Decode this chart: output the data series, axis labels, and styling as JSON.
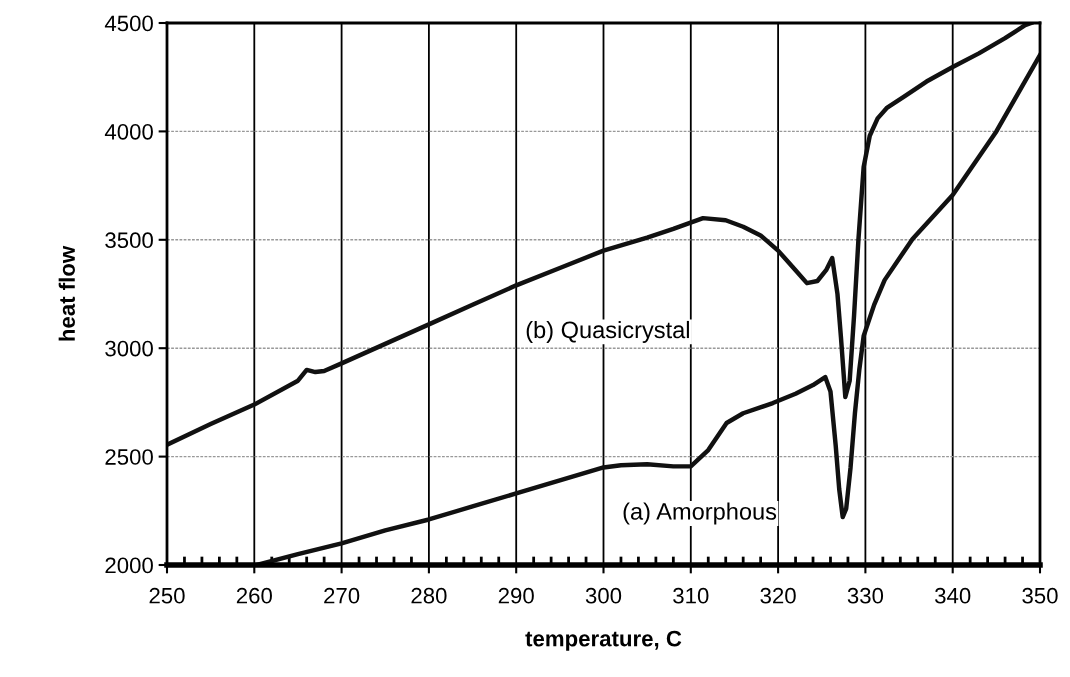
{
  "chart_data": {
    "type": "line",
    "xlabel": "temperature, C",
    "ylabel": "heat flow",
    "xlim": [
      250,
      350
    ],
    "xticks": [
      250,
      260,
      270,
      280,
      290,
      300,
      310,
      320,
      330,
      340,
      350
    ],
    "ylim": [
      2000,
      4500
    ],
    "yticks": [
      2000,
      2500,
      3000,
      3500,
      4000,
      4500
    ],
    "grid": true,
    "marker": "none",
    "line_style": "solid",
    "series": [
      {
        "name": "(b) Quasicrystal",
        "color": "#111111",
        "x": [
          250,
          255,
          260,
          265,
          266,
          267,
          268,
          270,
          275,
          280,
          285,
          290,
          295,
          300,
          305,
          308,
          311.4,
          314,
          316,
          318,
          320,
          322,
          323.3,
          324.5,
          325.5,
          326.2,
          326.8,
          327.2,
          327.7,
          328.2,
          328.7,
          329.2,
          329.8,
          330.5,
          331.4,
          332.5,
          334.3,
          337,
          340,
          343,
          346,
          348.3,
          349
        ],
        "values": [
          2555,
          2650,
          2740,
          2850,
          2900,
          2890,
          2895,
          2930,
          3020,
          3110,
          3200,
          3290,
          3370,
          3450,
          3510,
          3550,
          3600,
          3590,
          3560,
          3520,
          3450,
          3360,
          3300,
          3310,
          3360,
          3416,
          3250,
          3050,
          2775,
          2850,
          3150,
          3500,
          3836,
          3980,
          4060,
          4110,
          4157,
          4230,
          4297,
          4360,
          4430,
          4490,
          4500
        ]
      },
      {
        "name": "(a) Amorphous",
        "color": "#111111",
        "x": [
          260.3,
          265,
          270,
          275,
          280,
          285,
          290,
          295,
          300,
          302,
          305,
          308,
          310,
          312,
          314.1,
          316,
          319.4,
          322,
          324,
          325.4,
          326,
          326.6,
          327,
          327.4,
          327.8,
          328.3,
          328.8,
          329.3,
          329.8,
          331,
          332.2,
          335.4,
          340,
          345,
          350
        ],
        "values": [
          2000,
          2050,
          2100,
          2160,
          2210,
          2270,
          2330,
          2390,
          2450,
          2460,
          2465,
          2455,
          2455,
          2530,
          2655,
          2700,
          2747,
          2790,
          2830,
          2867,
          2800,
          2550,
          2350,
          2221,
          2260,
          2450,
          2700,
          2900,
          3056,
          3200,
          3314,
          3504,
          3707,
          4000,
          4352
        ]
      }
    ]
  }
}
